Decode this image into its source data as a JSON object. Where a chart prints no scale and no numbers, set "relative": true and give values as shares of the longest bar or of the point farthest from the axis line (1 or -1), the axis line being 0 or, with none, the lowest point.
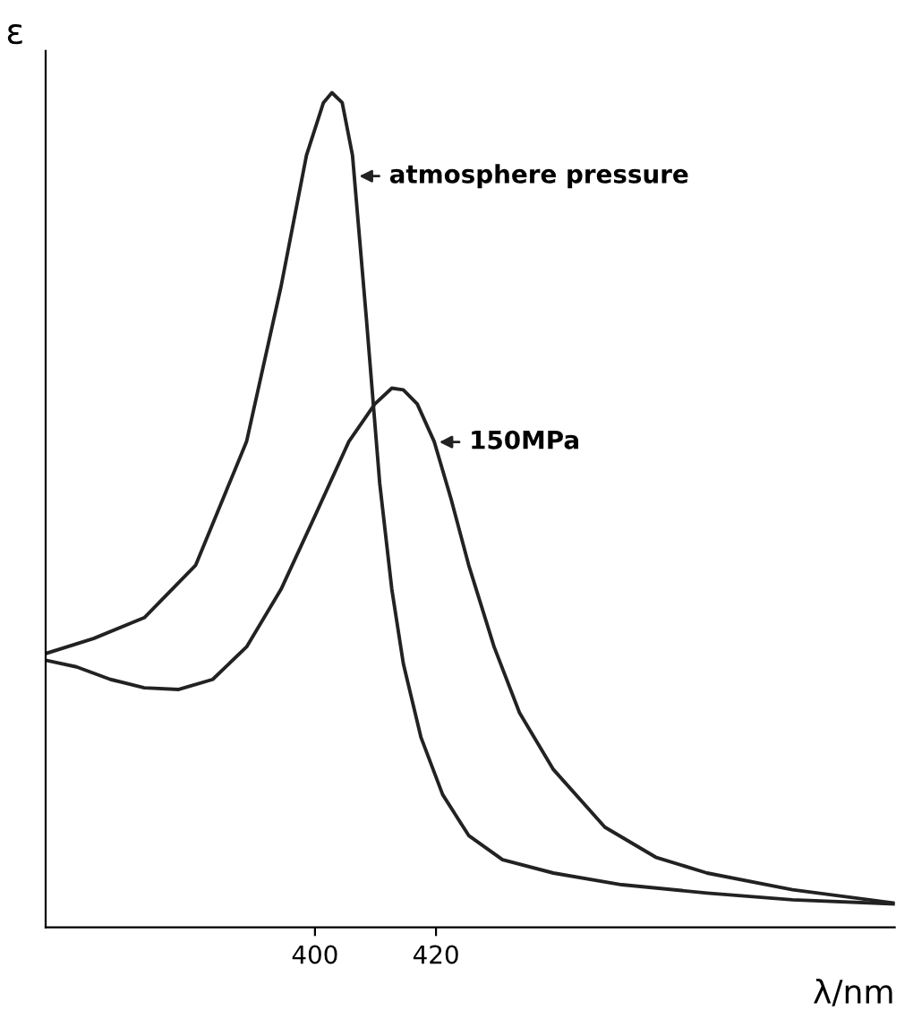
{
  "chart_data": {
    "type": "line",
    "relative": true,
    "xlabel": "λ/nm",
    "ylabel": "ε",
    "xlim": [
      355.5,
      495.8
    ],
    "xticks": [
      400,
      420
    ],
    "grid": false,
    "legend": "right",
    "marker": "none",
    "line_style": "solid",
    "series": [
      {
        "name": "atmosphere pressure",
        "color": "#222222",
        "x": [
          355.5,
          363.4,
          371.8,
          380.3,
          388.7,
          394.4,
          398.6,
          401.4,
          402.8,
          404.5,
          406.2,
          408.5,
          410.7,
          412.7,
          414.6,
          417.5,
          421.1,
          425.4,
          431,
          439.4,
          450.7,
          464.8,
          478.9,
          495.8
        ],
        "values": [
          0.328,
          0.346,
          0.371,
          0.434,
          0.582,
          0.768,
          0.925,
          0.988,
          1,
          0.988,
          0.925,
          0.729,
          0.532,
          0.405,
          0.316,
          0.228,
          0.159,
          0.11,
          0.081,
          0.065,
          0.051,
          0.041,
          0.033,
          0.028
        ]
      },
      {
        "name": "150MPa",
        "color": "#222222",
        "x": [
          355.5,
          360.6,
          366.2,
          371.8,
          377.5,
          383.1,
          388.7,
          394.4,
          400,
          405.6,
          409.9,
          412.7,
          414.6,
          416.9,
          419.7,
          422.5,
          425.4,
          429.6,
          433.8,
          439.4,
          447.9,
          456.3,
          464.8,
          478.9,
          495.8
        ],
        "values": [
          0.32,
          0.312,
          0.297,
          0.287,
          0.285,
          0.297,
          0.336,
          0.405,
          0.493,
          0.582,
          0.627,
          0.646,
          0.644,
          0.627,
          0.582,
          0.513,
          0.434,
          0.336,
          0.257,
          0.189,
          0.12,
          0.084,
          0.065,
          0.045,
          0.029
        ]
      }
    ]
  }
}
